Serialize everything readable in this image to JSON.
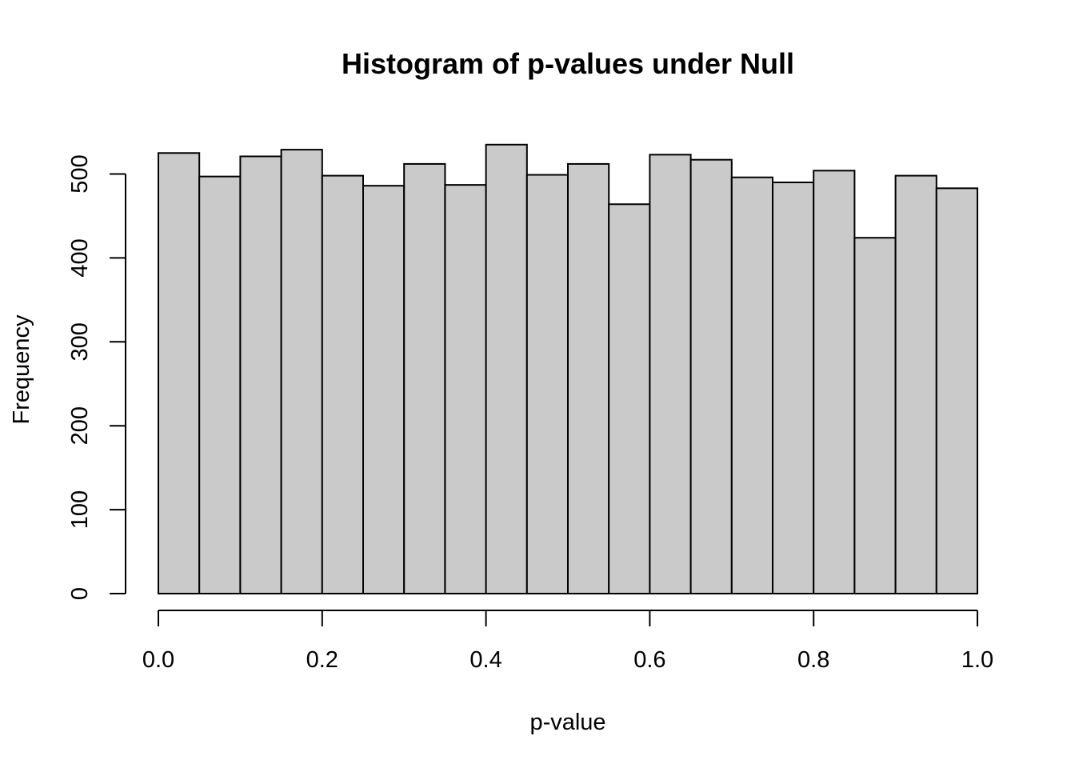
{
  "chart_data": {
    "type": "bar",
    "title": "Histogram of p-values under Null",
    "xlabel": "p-value",
    "ylabel": "Frequency",
    "bar_color": "#cacaca",
    "bin_edges": [
      0.0,
      0.05,
      0.1,
      0.15,
      0.2,
      0.25,
      0.3,
      0.35,
      0.4,
      0.45,
      0.5,
      0.55,
      0.6,
      0.65,
      0.7,
      0.75,
      0.8,
      0.85,
      0.9,
      0.95,
      1.0
    ],
    "values": [
      525,
      497,
      521,
      529,
      498,
      486,
      512,
      487,
      535,
      499,
      512,
      464,
      523,
      517,
      496,
      490,
      504,
      424,
      498,
      483
    ],
    "xlim": [
      0.0,
      1.0
    ],
    "ylim": [
      0,
      535
    ],
    "x_ticks": [
      0.0,
      0.2,
      0.4,
      0.6,
      0.8,
      1.0
    ],
    "x_tick_labels": [
      "0.0",
      "0.2",
      "0.4",
      "0.6",
      "0.8",
      "1.0"
    ],
    "y_ticks": [
      0,
      100,
      200,
      300,
      400,
      500
    ],
    "y_tick_labels": [
      "0",
      "100",
      "200",
      "300",
      "400",
      "500"
    ],
    "grid": false,
    "legend": "none"
  }
}
